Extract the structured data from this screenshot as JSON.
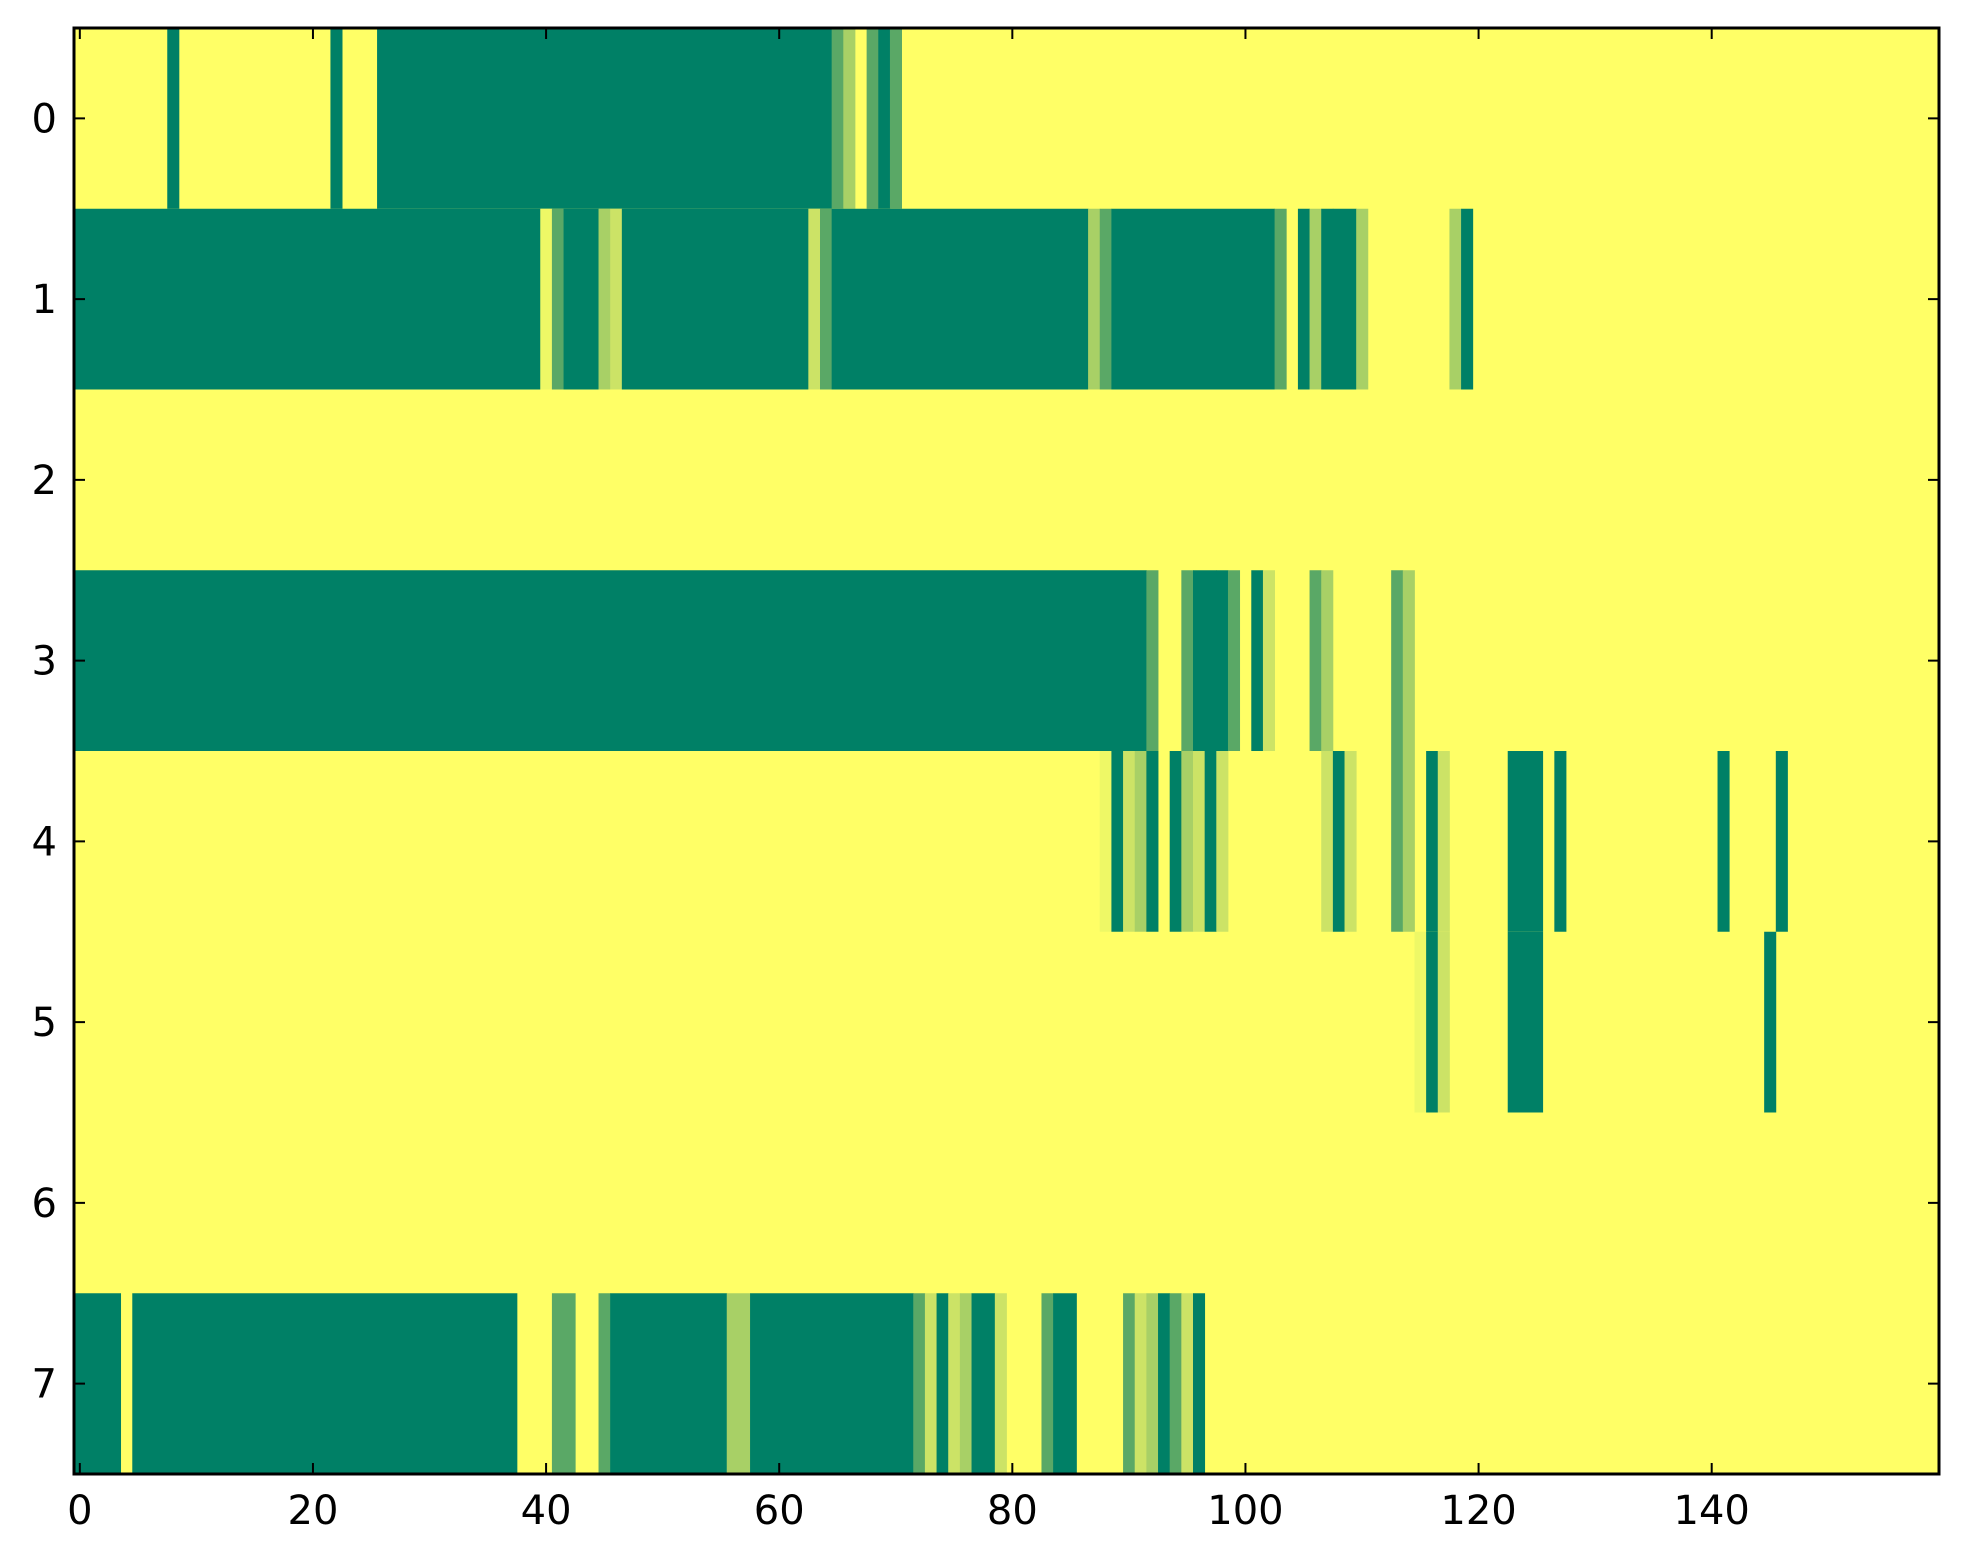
{
  "chart_data": {
    "type": "heatmap",
    "title": "",
    "xlabel": "",
    "ylabel": "",
    "xlim": [
      -0.5,
      159.5
    ],
    "ylim": [
      7.5,
      -0.5
    ],
    "x_ticks": [
      0,
      20,
      40,
      60,
      80,
      100,
      120,
      140
    ],
    "x_tick_labels": [
      "0",
      "20",
      "40",
      "60",
      "80",
      "100",
      "120",
      "140"
    ],
    "y_ticks": [
      0,
      1,
      2,
      3,
      4,
      5,
      6,
      7
    ],
    "y_tick_labels": [
      "0",
      "1",
      "2",
      "3",
      "4",
      "5",
      "6",
      "7"
    ],
    "n_rows": 8,
    "n_cols": 160,
    "colormap": "summer_r",
    "colors": {
      "low": "#ffff66",
      "level_1": "#eef866",
      "level_2": "#cce366",
      "level_3": "#a8d066",
      "level_4": "#5aa866",
      "high": "#008066",
      "background": "#ffff66",
      "frame": "#000000"
    },
    "rows": [
      {
        "row": 0,
        "segments": [
          [
            8,
            8,
            5
          ],
          [
            22,
            22,
            5
          ],
          [
            26,
            64,
            5
          ],
          [
            65,
            65,
            4
          ],
          [
            66,
            66,
            3
          ],
          [
            68,
            68,
            4
          ],
          [
            69,
            69,
            5
          ],
          [
            70,
            70,
            4
          ]
        ]
      },
      {
        "row": 1,
        "segments": [
          [
            0,
            39,
            5
          ],
          [
            40,
            40,
            1
          ],
          [
            41,
            41,
            4
          ],
          [
            42,
            44,
            5
          ],
          [
            45,
            45,
            3
          ],
          [
            46,
            46,
            2
          ],
          [
            47,
            62,
            5
          ],
          [
            63,
            63,
            2
          ],
          [
            64,
            64,
            4
          ],
          [
            65,
            86,
            5
          ],
          [
            87,
            87,
            3
          ],
          [
            88,
            88,
            4
          ],
          [
            89,
            102,
            5
          ],
          [
            103,
            103,
            4
          ],
          [
            105,
            105,
            5
          ],
          [
            106,
            106,
            3
          ],
          [
            107,
            107,
            5
          ],
          [
            108,
            109,
            5
          ],
          [
            110,
            110,
            3
          ],
          [
            118,
            118,
            3
          ],
          [
            119,
            119,
            5
          ]
        ]
      },
      {
        "row": 2,
        "segments": []
      },
      {
        "row": 3,
        "segments": [
          [
            0,
            91,
            5
          ],
          [
            92,
            92,
            4
          ],
          [
            95,
            95,
            4
          ],
          [
            96,
            97,
            5
          ],
          [
            98,
            98,
            5
          ],
          [
            99,
            99,
            4
          ],
          [
            101,
            101,
            5
          ],
          [
            102,
            102,
            2
          ],
          [
            106,
            106,
            4
          ],
          [
            107,
            107,
            3
          ],
          [
            113,
            113,
            4
          ],
          [
            114,
            114,
            3
          ]
        ]
      },
      {
        "row": 4,
        "segments": [
          [
            88,
            88,
            1
          ],
          [
            89,
            89,
            5
          ],
          [
            90,
            90,
            2
          ],
          [
            91,
            91,
            3
          ],
          [
            92,
            92,
            5
          ],
          [
            94,
            94,
            5
          ],
          [
            95,
            95,
            3
          ],
          [
            96,
            96,
            2
          ],
          [
            97,
            97,
            5
          ],
          [
            98,
            98,
            2
          ],
          [
            107,
            107,
            2
          ],
          [
            108,
            108,
            5
          ],
          [
            109,
            109,
            2
          ],
          [
            113,
            113,
            4
          ],
          [
            114,
            114,
            3
          ],
          [
            116,
            116,
            5
          ],
          [
            117,
            117,
            2
          ],
          [
            123,
            125,
            5
          ],
          [
            127,
            127,
            5
          ],
          [
            141,
            141,
            5
          ],
          [
            146,
            146,
            5
          ]
        ]
      },
      {
        "row": 5,
        "segments": [
          [
            115,
            115,
            1
          ],
          [
            116,
            116,
            5
          ],
          [
            117,
            117,
            2
          ],
          [
            123,
            125,
            5
          ],
          [
            145,
            145,
            5
          ]
        ]
      },
      {
        "row": 6,
        "segments": []
      },
      {
        "row": 7,
        "segments": [
          [
            0,
            3,
            5
          ],
          [
            5,
            37,
            5
          ],
          [
            41,
            42,
            4
          ],
          [
            45,
            45,
            4
          ],
          [
            46,
            55,
            5
          ],
          [
            56,
            57,
            3
          ],
          [
            58,
            71,
            5
          ],
          [
            72,
            72,
            4
          ],
          [
            73,
            73,
            2
          ],
          [
            74,
            74,
            5
          ],
          [
            75,
            75,
            2
          ],
          [
            76,
            76,
            3
          ],
          [
            77,
            78,
            5
          ],
          [
            79,
            79,
            2
          ],
          [
            83,
            83,
            4
          ],
          [
            84,
            85,
            5
          ],
          [
            90,
            90,
            4
          ],
          [
            91,
            91,
            2
          ],
          [
            92,
            92,
            3
          ],
          [
            93,
            93,
            5
          ],
          [
            94,
            94,
            4
          ],
          [
            95,
            95,
            2
          ],
          [
            96,
            96,
            5
          ]
        ]
      }
    ]
  }
}
